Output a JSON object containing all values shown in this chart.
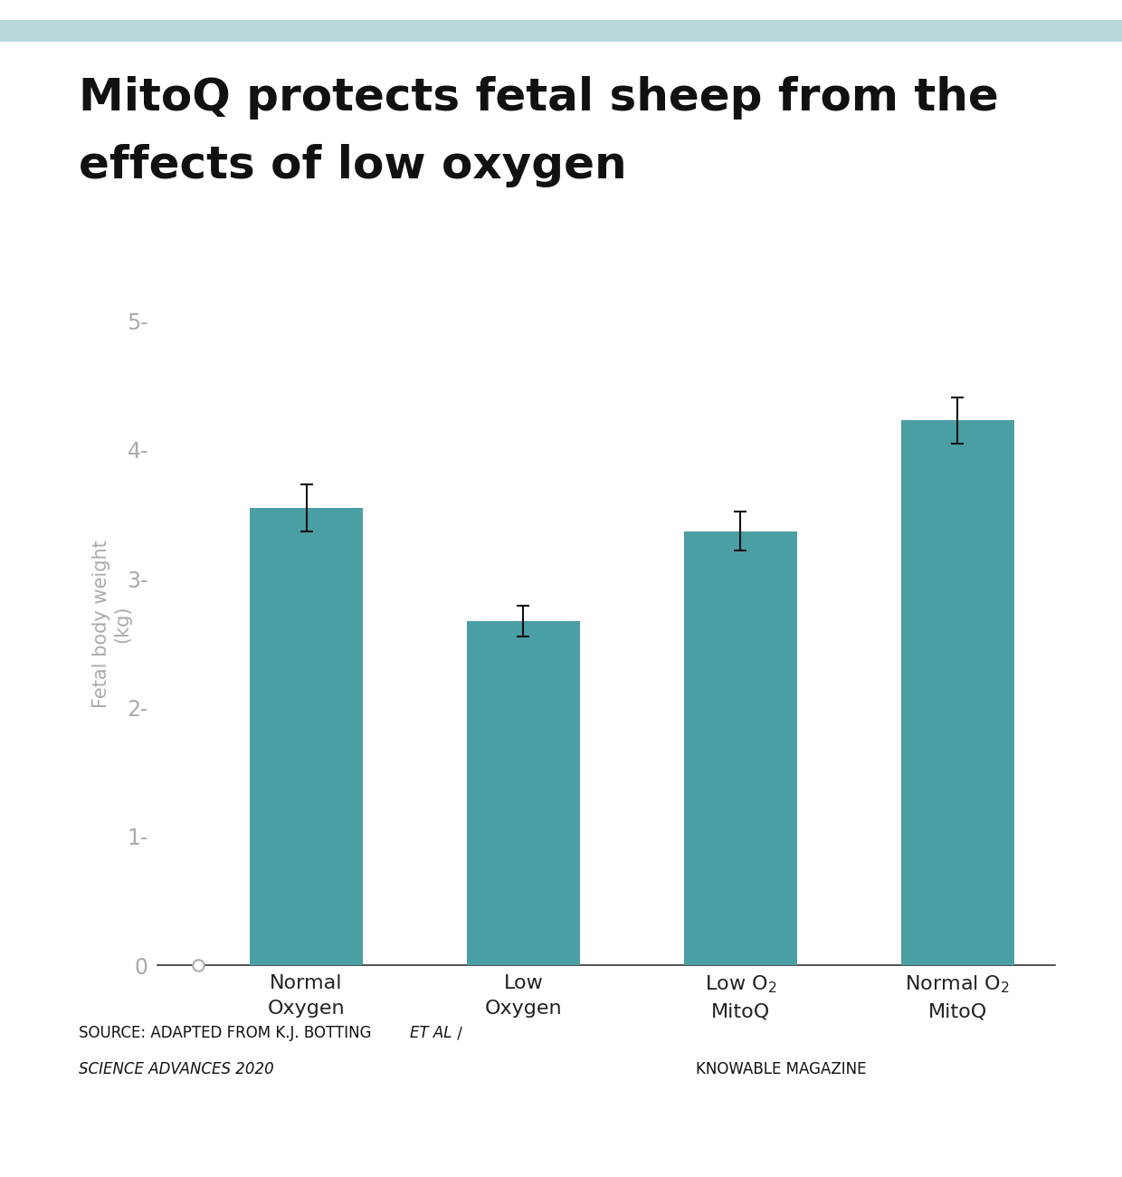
{
  "title_line1": "MitoQ protects fetal sheep from the",
  "title_line2": "effects of low oxygen",
  "values": [
    3.55,
    2.67,
    3.37,
    4.23
  ],
  "errors": [
    0.18,
    0.12,
    0.15,
    0.18
  ],
  "bar_color": "#4a9fa5",
  "ylabel_line1": "Fetal body weight",
  "ylabel_line2": "(kg)",
  "ylim": [
    0,
    5.3
  ],
  "yticks": [
    0,
    1,
    2,
    3,
    4,
    5
  ],
  "ytick_labels": [
    "0",
    "1-",
    "2-",
    "3-",
    "4-",
    "5-"
  ],
  "background_color": "#ffffff",
  "top_bar_color": "#b8d8dc",
  "credit_text": "KNOWABLE MAGAZINE",
  "title_fontsize": 36,
  "ylabel_fontsize": 15,
  "tick_fontsize": 17,
  "xtick_fontsize": 16,
  "source_fontsize": 12
}
